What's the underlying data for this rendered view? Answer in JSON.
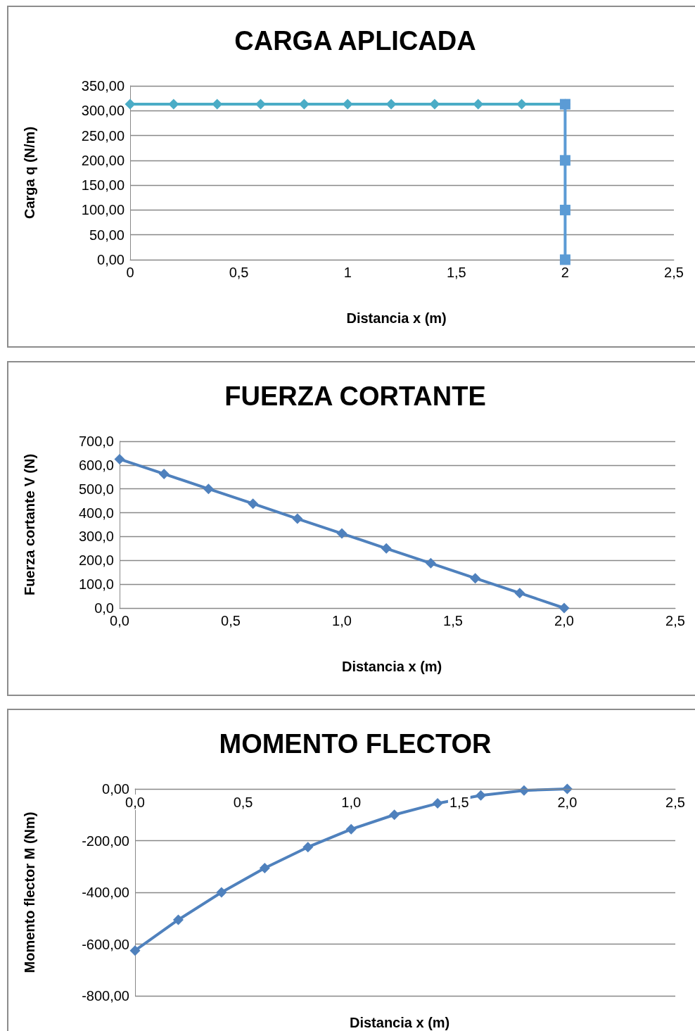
{
  "chart_data": [
    {
      "type": "line",
      "title": "CARGA APLICADA",
      "xlabel": "Distancia x (m)",
      "ylabel": "Carga q (N/m)",
      "xlim": [
        0,
        2.5
      ],
      "xticks": [
        0,
        {
          "value": 0.5,
          "label": "0,5"
        },
        1,
        {
          "value": 1.5,
          "label": "1,5"
        },
        2,
        {
          "value": 2.5,
          "label": "2,5"
        }
      ],
      "ylim": [
        0,
        350
      ],
      "yticks": [
        {
          "value": 0,
          "label": "0,00"
        },
        {
          "value": 50,
          "label": "50,00"
        },
        {
          "value": 100,
          "label": "100,00"
        },
        {
          "value": 150,
          "label": "150,00"
        },
        {
          "value": 200,
          "label": "200,00"
        },
        {
          "value": 250,
          "label": "250,00"
        },
        {
          "value": 300,
          "label": "300,00"
        },
        {
          "value": 350,
          "label": "350,00"
        }
      ],
      "grid": "y",
      "line_style": "solid",
      "series": [
        {
          "color": "#4bacc6",
          "marker": "diamond",
          "x": [
            0,
            0.2,
            0.4,
            0.6,
            0.8,
            1,
            1.2,
            1.4,
            1.6,
            1.8,
            2
          ],
          "values": [
            313,
            313,
            313,
            313,
            313,
            313,
            313,
            313,
            313,
            313,
            313
          ]
        },
        {
          "color": "#5b9bd5",
          "marker": "square",
          "x": [
            2,
            2,
            2,
            2
          ],
          "values": [
            313,
            200,
            100,
            0
          ]
        }
      ]
    },
    {
      "type": "line",
      "title": "FUERZA CORTANTE",
      "xlabel": "Distancia x (m)",
      "ylabel": "Fuerza cortante V (N)",
      "xlim": [
        0,
        2.5
      ],
      "xticks": [
        {
          "value": 0,
          "label": "0,0"
        },
        {
          "value": 0.5,
          "label": "0,5"
        },
        {
          "value": 1,
          "label": "1,0"
        },
        {
          "value": 1.5,
          "label": "1,5"
        },
        {
          "value": 2,
          "label": "2,0"
        },
        {
          "value": 2.5,
          "label": "2,5"
        }
      ],
      "ylim": [
        0,
        700
      ],
      "yticks": [
        {
          "value": 0,
          "label": "0,0"
        },
        {
          "value": 100,
          "label": "100,0"
        },
        {
          "value": 200,
          "label": "200,0"
        },
        {
          "value": 300,
          "label": "300,0"
        },
        {
          "value": 400,
          "label": "400,0"
        },
        {
          "value": 500,
          "label": "500,0"
        },
        {
          "value": 600,
          "label": "600,0"
        },
        {
          "value": 700,
          "label": "700,0"
        }
      ],
      "grid": "y",
      "line_style": "solid",
      "series": [
        {
          "color": "#4f81bd",
          "marker": "diamond",
          "x": [
            0,
            0.2,
            0.4,
            0.6,
            0.8,
            1,
            1.2,
            1.4,
            1.6,
            1.8,
            2
          ],
          "values": [
            625,
            563,
            500,
            438,
            375,
            313,
            250,
            188,
            125,
            63,
            0
          ]
        }
      ]
    },
    {
      "type": "line",
      "title": "MOMENTO FLECTOR",
      "xlabel": "Distancia x (m)",
      "ylabel": "Momento flector M (Nm)",
      "xlim": [
        0,
        2.5
      ],
      "xticks": [
        {
          "value": 0,
          "label": "0,0"
        },
        {
          "value": 0.5,
          "label": "0,5"
        },
        {
          "value": 1,
          "label": "1,0"
        },
        {
          "value": 1.5,
          "label": "1,5"
        },
        {
          "value": 2,
          "label": "2,0"
        },
        {
          "value": 2.5,
          "label": "2,5"
        }
      ],
      "ylim": [
        -800,
        0
      ],
      "yticks": [
        {
          "value": -800,
          "label": "-800,00"
        },
        {
          "value": -600,
          "label": "-600,00"
        },
        {
          "value": -400,
          "label": "-400,00"
        },
        {
          "value": -200,
          "label": "-200,00"
        },
        {
          "value": 0,
          "label": "0,00"
        }
      ],
      "grid": "y",
      "line_style": "solid",
      "series": [
        {
          "color": "#4f81bd",
          "marker": "diamond",
          "x": [
            0,
            0.2,
            0.4,
            0.6,
            0.8,
            1,
            1.2,
            1.4,
            1.6,
            1.8,
            2
          ],
          "values": [
            -625,
            -506,
            -400,
            -306,
            -225,
            -156,
            -100,
            -56,
            -25,
            -6,
            0
          ]
        }
      ]
    }
  ]
}
